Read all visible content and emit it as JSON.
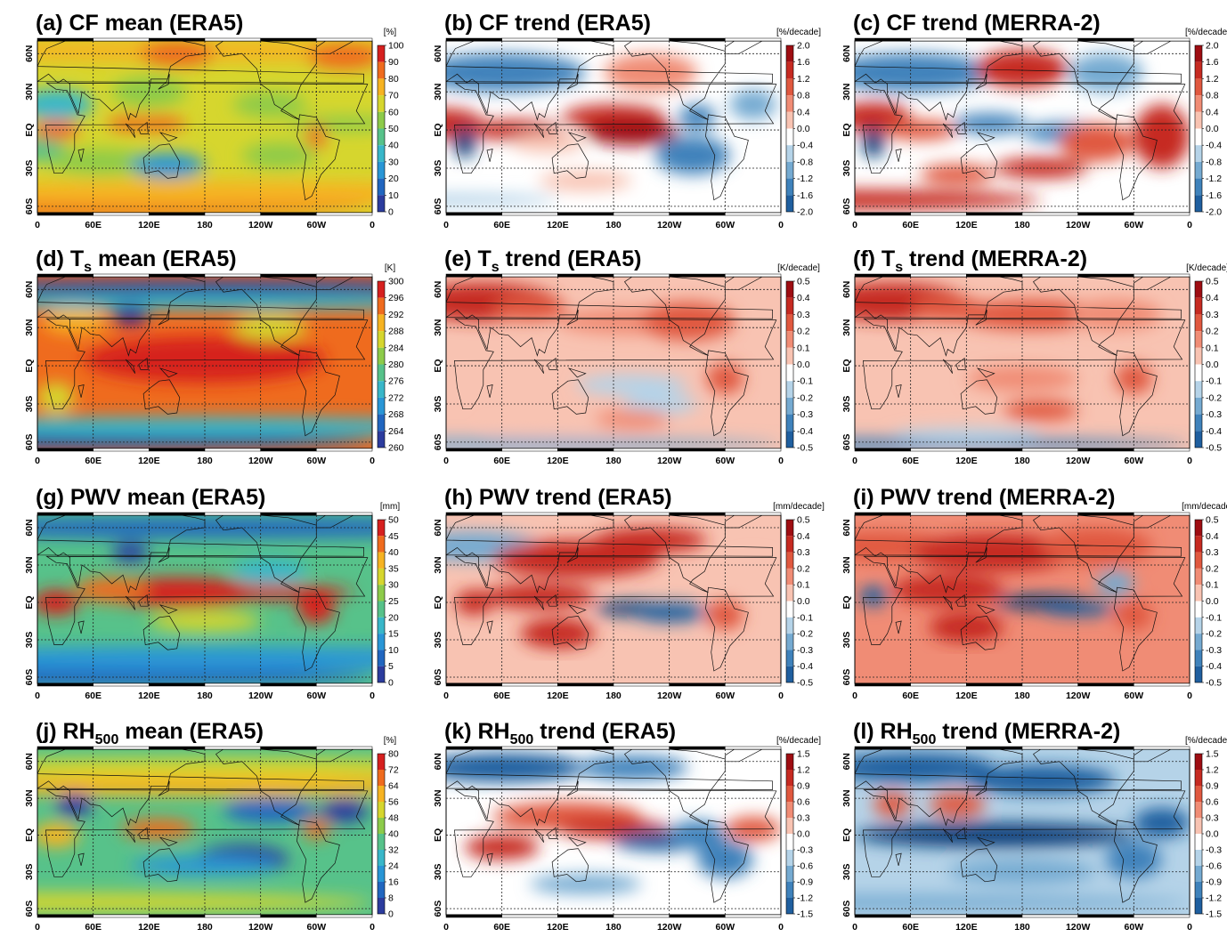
{
  "lon_labels": [
    "0",
    "60E",
    "120E",
    "180",
    "120W",
    "60W",
    "0"
  ],
  "lat_labels": [
    "60N",
    "30N",
    "EQ",
    "30S",
    "60S"
  ],
  "panels": [
    {
      "title": "(a) CF mean (ERA5)",
      "title_pre": "(a) CF",
      "title_sub": "",
      "title_post": " mean (ERA5)",
      "unit": "[%]",
      "ticks": [
        "100",
        "90",
        "80",
        "70",
        "60",
        "50",
        "40",
        "30",
        "20",
        "10",
        "0"
      ],
      "colormap": "rainbow",
      "field": "cf_mean"
    },
    {
      "title": "(b) CF trend (ERA5)",
      "title_pre": "(b) CF",
      "title_sub": "",
      "title_post": " trend (ERA5)",
      "unit": "[%/decade]",
      "ticks": [
        "2.0",
        "1.6",
        "1.2",
        "0.8",
        "0.4",
        "0.0",
        "-0.4",
        "-0.8",
        "-1.2",
        "-1.6",
        "-2.0"
      ],
      "colormap": "diverging",
      "field": "cf_trend_era5"
    },
    {
      "title": "(c) CF trend (MERRA-2)",
      "title_pre": "(c) CF",
      "title_sub": "",
      "title_post": " trend (MERRA-2)",
      "unit": "[%/decade]",
      "ticks": [
        "2.0",
        "1.6",
        "1.2",
        "0.8",
        "0.4",
        "0.0",
        "-0.4",
        "-0.8",
        "-1.2",
        "-1.6",
        "-2.0"
      ],
      "colormap": "diverging",
      "field": "cf_trend_merra2"
    },
    {
      "title": "(d) Ts mean (ERA5)",
      "title_pre": "(d) T",
      "title_sub": "s",
      "title_post": " mean (ERA5)",
      "unit": "[K]",
      "ticks": [
        "300",
        "296",
        "292",
        "288",
        "284",
        "280",
        "276",
        "272",
        "268",
        "264",
        "260"
      ],
      "colormap": "rainbow",
      "field": "ts_mean"
    },
    {
      "title": "(e) Ts trend (ERA5)",
      "title_pre": "(e) T",
      "title_sub": "s",
      "title_post": " trend (ERA5)",
      "unit": "[K/decade]",
      "ticks": [
        "0.5",
        "0.4",
        "0.3",
        "0.2",
        "0.1",
        "0.0",
        "-0.1",
        "-0.2",
        "-0.3",
        "-0.4",
        "-0.5"
      ],
      "colormap": "diverging",
      "field": "ts_trend_era5"
    },
    {
      "title": "(f) Ts trend (MERRA-2)",
      "title_pre": "(f) T",
      "title_sub": "s",
      "title_post": " trend (MERRA-2)",
      "unit": "[K/decade]",
      "ticks": [
        "0.5",
        "0.4",
        "0.3",
        "0.2",
        "0.1",
        "0.0",
        "-0.1",
        "-0.2",
        "-0.3",
        "-0.4",
        "-0.5"
      ],
      "colormap": "diverging",
      "field": "ts_trend_merra2"
    },
    {
      "title": "(g) PWV mean (ERA5)",
      "title_pre": "(g) PWV",
      "title_sub": "",
      "title_post": " mean (ERA5)",
      "unit": "[mm]",
      "ticks": [
        "50",
        "45",
        "40",
        "35",
        "30",
        "25",
        "20",
        "15",
        "10",
        "5",
        "0"
      ],
      "colormap": "rainbow",
      "field": "pwv_mean"
    },
    {
      "title": "(h) PWV trend (ERA5)",
      "title_pre": "(h) PWV",
      "title_sub": "",
      "title_post": " trend (ERA5)",
      "unit": "[mm/decade]",
      "ticks": [
        "0.5",
        "0.4",
        "0.3",
        "0.2",
        "0.1",
        "0.0",
        "-0.1",
        "-0.2",
        "-0.3",
        "-0.4",
        "-0.5"
      ],
      "colormap": "diverging",
      "field": "pwv_trend_era5"
    },
    {
      "title": "(i) PWV trend (MERRA-2)",
      "title_pre": "(i) PWV",
      "title_sub": "",
      "title_post": " trend (MERRA-2)",
      "unit": "[mm/decade]",
      "ticks": [
        "0.5",
        "0.4",
        "0.3",
        "0.2",
        "0.1",
        "0.0",
        "-0.1",
        "-0.2",
        "-0.3",
        "-0.4",
        "-0.5"
      ],
      "colormap": "diverging",
      "field": "pwv_trend_merra2"
    },
    {
      "title": "(j) RH500 mean (ERA5)",
      "title_pre": "(j) RH",
      "title_sub": "500",
      "title_post": " mean (ERA5)",
      "unit": "[%]",
      "ticks": [
        "80",
        "72",
        "64",
        "56",
        "48",
        "40",
        "32",
        "24",
        "16",
        "8",
        "0"
      ],
      "colormap": "rainbow",
      "field": "rh500_mean"
    },
    {
      "title": "(k) RH500 trend (ERA5)",
      "title_pre": "(k) RH",
      "title_sub": "500",
      "title_post": " trend (ERA5)",
      "unit": "[%/decade]",
      "ticks": [
        "1.5",
        "1.2",
        "0.9",
        "0.6",
        "0.3",
        "0.0",
        "-0.3",
        "-0.6",
        "-0.9",
        "-1.2",
        "-1.5"
      ],
      "colormap": "diverging",
      "field": "rh500_trend_era5"
    },
    {
      "title": "(l) RH500 trend (MERRA-2)",
      "title_pre": "(l) RH",
      "title_sub": "500",
      "title_post": " trend (MERRA-2)",
      "unit": "[%/decade]",
      "ticks": [
        "1.5",
        "1.2",
        "0.9",
        "0.6",
        "0.3",
        "0.0",
        "-0.3",
        "-0.6",
        "-0.9",
        "-1.2",
        "-1.5"
      ],
      "colormap": "diverging",
      "field": "rh500_trend_merra2"
    }
  ],
  "colors": {
    "rainbow": [
      "#3a1f8a",
      "#2c3c9e",
      "#2166c0",
      "#2996d6",
      "#39b7c9",
      "#57c28a",
      "#8dcb4a",
      "#d6d62e",
      "#f6b322",
      "#ef6b1e",
      "#d6201f"
    ],
    "diverging": [
      "#0b3f7a",
      "#1f5f9f",
      "#3f82bb",
      "#75aad1",
      "#b5d3e8",
      "#ffffff",
      "#f8c3b2",
      "#f08c75",
      "#e0583f",
      "#c62a21",
      "#9e0d12"
    ]
  }
}
